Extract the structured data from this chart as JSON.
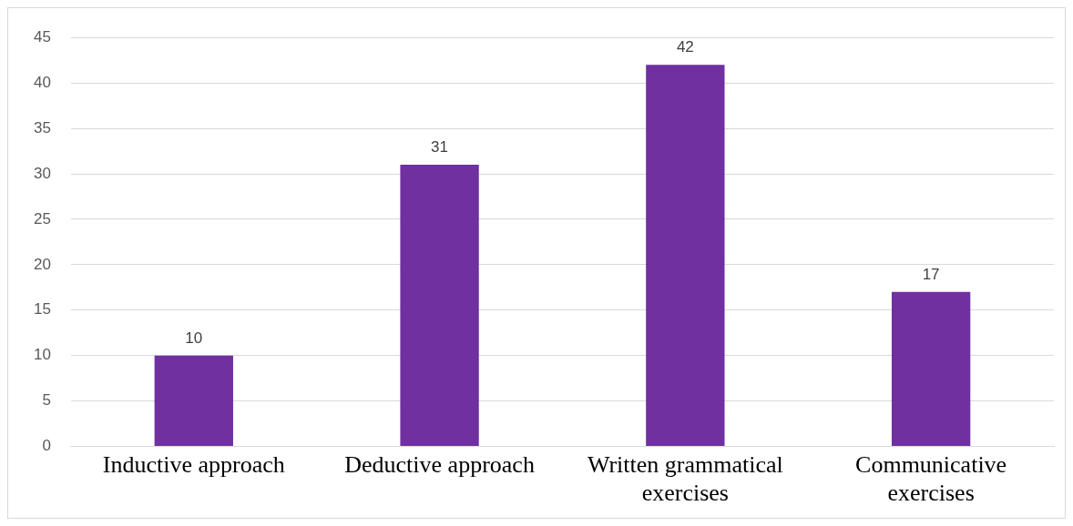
{
  "chart_data": {
    "type": "bar",
    "categories": [
      "Inductive approach",
      "Deductive approach",
      "Written grammatical exercises",
      "Communicative exercises"
    ],
    "values": [
      10,
      31,
      42,
      17
    ],
    "color": "#7030a0",
    "ylim": [
      0,
      45
    ],
    "yticks": [
      0,
      5,
      10,
      15,
      20,
      25,
      30,
      35,
      40,
      45
    ],
    "grid": "y",
    "data_labels": true,
    "legend": false
  }
}
